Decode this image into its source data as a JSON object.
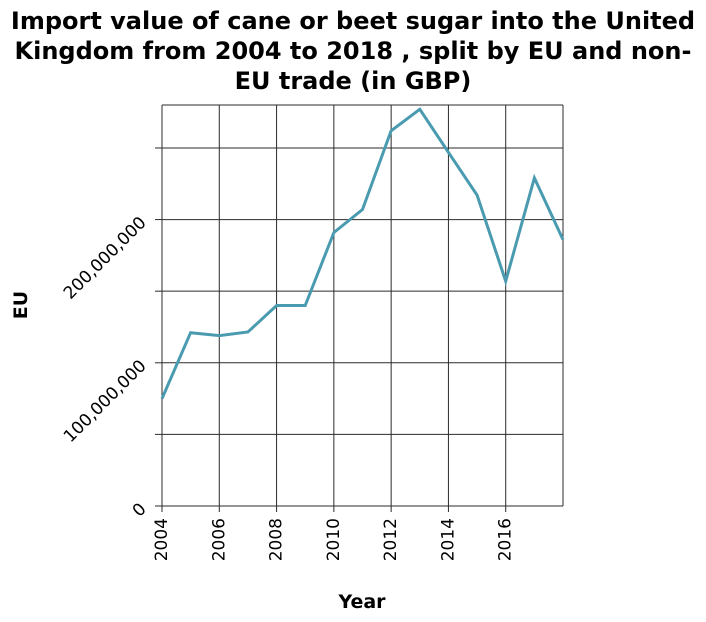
{
  "chart_data": {
    "type": "line",
    "title": "Import value of cane or beet sugar into the United Kingdom from 2004 to 2018 , split by EU and non-EU trade (in GBP)",
    "xlabel": "Year",
    "ylabel": "EU",
    "xlim": [
      2004,
      2018
    ],
    "ylim": [
      0,
      280000000
    ],
    "x_ticks": [
      2004,
      2006,
      2008,
      2010,
      2012,
      2014,
      2016
    ],
    "x_tick_labels": [
      "2004",
      "2006",
      "2008",
      "2010",
      "2012",
      "2014",
      "2016"
    ],
    "y_ticks": [
      0,
      50000000,
      100000000,
      150000000,
      200000000,
      250000000
    ],
    "y_tick_labels": [
      "0",
      "",
      "100,000,000",
      "",
      "200,000,000",
      ""
    ],
    "grid": true,
    "series": [
      {
        "color": "#4a9bb0",
        "x": [
          2004,
          2005,
          2006,
          2007,
          2008,
          2009,
          2010,
          2011,
          2012,
          2013,
          2014,
          2015,
          2016,
          2017,
          2018
        ],
        "y": [
          75000000,
          121000000,
          119000000,
          121500000,
          140000000,
          140000000,
          191000000,
          207000000,
          262000000,
          277000000,
          247000000,
          217000000,
          157000000,
          229000000,
          186000000
        ]
      }
    ]
  }
}
